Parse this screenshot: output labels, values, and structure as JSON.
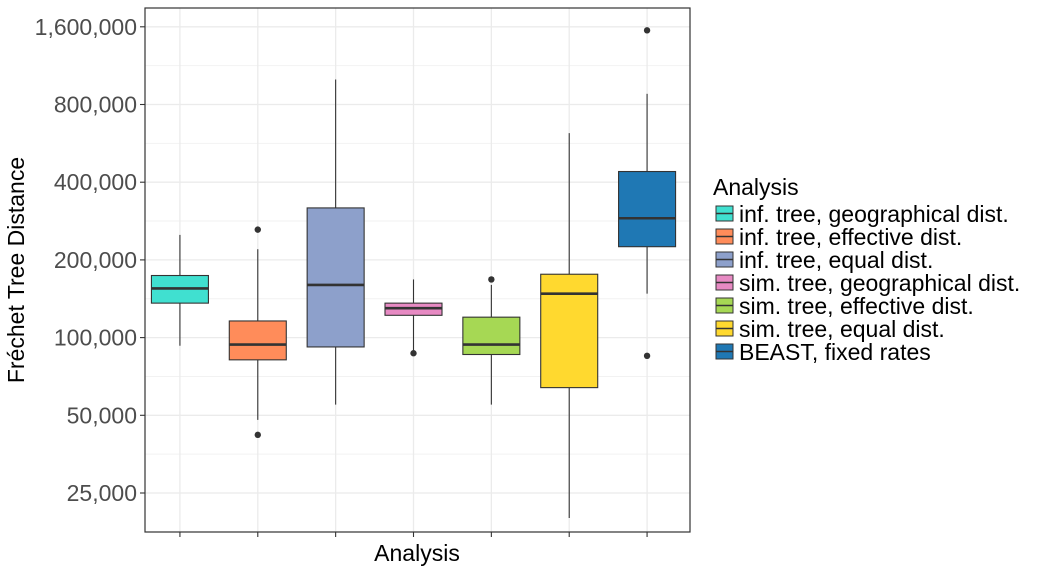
{
  "chart_data": {
    "type": "box",
    "xlabel": "Analysis",
    "ylabel": "Fréchet Tree Distance",
    "y_scale": "log",
    "ylim": [
      20000,
      1900000
    ],
    "y_ticks": [
      25000,
      50000,
      100000,
      200000,
      400000,
      800000,
      1600000
    ],
    "y_tick_labels": [
      "25,000",
      "50,000",
      "100,000",
      "200,000",
      "400,000",
      "800,000",
      "1,600,000"
    ],
    "grid": true,
    "legend": {
      "title": "Analysis",
      "placement": "right"
    },
    "series": [
      {
        "name": "inf. tree, geographical dist.",
        "color": "#40E0D0",
        "min": 93000,
        "q1": 136000,
        "median": 155000,
        "q3": 174000,
        "max": 250000,
        "outliers": []
      },
      {
        "name": "inf. tree, effective dist.",
        "color": "#FF8C5A",
        "min": 48000,
        "q1": 82000,
        "median": 94000,
        "q3": 116000,
        "max": 220000,
        "outliers": [
          42000,
          262000
        ]
      },
      {
        "name": "inf. tree, equal dist.",
        "color": "#8DA0CB",
        "min": 55000,
        "q1": 92000,
        "median": 160000,
        "q3": 318000,
        "max": 1000000,
        "outliers": []
      },
      {
        "name": "sim. tree, geographical dist.",
        "color": "#E78AC3",
        "min": 87000,
        "q1": 122000,
        "median": 130000,
        "q3": 136000,
        "max": 168000,
        "outliers": [
          87000
        ]
      },
      {
        "name": "sim. tree, effective dist.",
        "color": "#A6D854",
        "min": 55000,
        "q1": 86000,
        "median": 94000,
        "q3": 120000,
        "max": 160000,
        "outliers": [
          168000
        ]
      },
      {
        "name": "sim. tree, equal dist.",
        "color": "#FFD92F",
        "min": 20000,
        "q1": 64000,
        "median": 148000,
        "q3": 176000,
        "max": 620000,
        "outliers": []
      },
      {
        "name": "BEAST, fixed rates",
        "color": "#1F78B4",
        "min": 148000,
        "q1": 225000,
        "median": 290000,
        "q3": 440000,
        "max": 880000,
        "outliers": [
          85000,
          1550000
        ]
      }
    ]
  }
}
